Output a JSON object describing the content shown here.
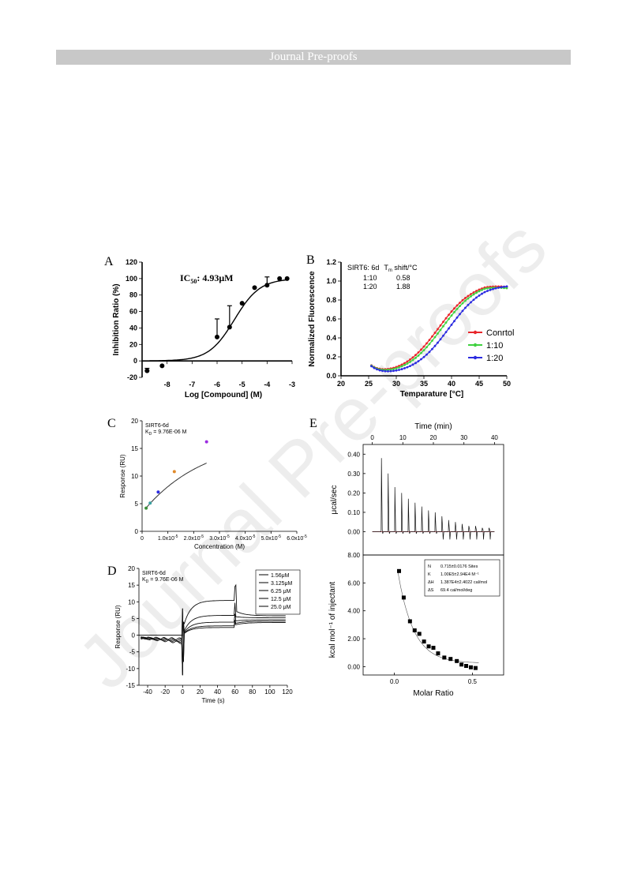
{
  "header": {
    "title": "Journal Pre-proofs"
  },
  "watermark": {
    "text": "Journal Pre-proofs"
  },
  "panels": {
    "A": {
      "label": "A"
    },
    "B": {
      "label": "B"
    },
    "C": {
      "label": "C"
    },
    "D": {
      "label": "D"
    },
    "E": {
      "label": "E"
    }
  },
  "chart_data": [
    {
      "id": "A",
      "type": "scatter",
      "title": "",
      "annotation": {
        "text": "IC",
        "sub": "50",
        "rest": ": 4.93μM"
      },
      "xlabel": "Log [Compound] (M)",
      "ylabel": "Inhibition Ratio (%)",
      "xlim": [
        -9,
        -3
      ],
      "ylim": [
        -20,
        120
      ],
      "xticks": [
        -9,
        -8,
        -7,
        -6,
        -5,
        -4,
        -3
      ],
      "xtick_labels": [
        "-9",
        "-8",
        "-7",
        "-6",
        "-5",
        "-4",
        "-3"
      ],
      "yticks": [
        -20,
        0,
        20,
        40,
        60,
        80,
        100,
        120
      ],
      "points": [
        {
          "x": -8.8,
          "y": -12,
          "err": 3
        },
        {
          "x": -8.2,
          "y": -6,
          "err": 0
        },
        {
          "x": -6.0,
          "y": 29,
          "err": 22
        },
        {
          "x": -5.5,
          "y": 41,
          "err": 26
        },
        {
          "x": -5.0,
          "y": 70,
          "err": 0
        },
        {
          "x": -4.5,
          "y": 89,
          "err": 0
        },
        {
          "x": -4.0,
          "y": 92,
          "err": 10
        },
        {
          "x": -3.5,
          "y": 100,
          "err": 0
        },
        {
          "x": -3.2,
          "y": 100,
          "err": 0
        }
      ],
      "fit": {
        "bottom": 0,
        "top": 100,
        "logIC50": -5.31,
        "hill": 0.85,
        "from": -8.7,
        "to": -3.2
      }
    },
    {
      "id": "B",
      "type": "line",
      "xlabel": "Temparature [°C]",
      "ylabel": "Normalized Fluorescence",
      "xlim": [
        20,
        50
      ],
      "ylim": [
        0.0,
        1.2
      ],
      "xticks": [
        20,
        25,
        30,
        35,
        40,
        45,
        50
      ],
      "yticks": [
        0.0,
        0.2,
        0.4,
        0.6,
        0.8,
        1.0,
        1.2
      ],
      "ytick_labels": [
        "0.0",
        "0.2",
        "0.4",
        "0.6",
        "0.8",
        "1.0",
        "1.2"
      ],
      "inset_table": {
        "header": [
          "SIRT6: 6d",
          "T",
          "m",
          " shift/°C"
        ],
        "rows": [
          [
            "1:10",
            "0.58"
          ],
          [
            "1:20",
            "1.88"
          ]
        ]
      },
      "series": [
        {
          "name": "Conrtol",
          "color": "#e8262b",
          "tm": 37.6,
          "k": 0.28,
          "droop": 0.04
        },
        {
          "name": "1:10",
          "color": "#3fd13f",
          "tm": 38.2,
          "k": 0.28,
          "droop": 0.05
        },
        {
          "name": "1:20",
          "color": "#2b2be0",
          "tm": 39.5,
          "k": 0.28,
          "droop": 0.02
        }
      ],
      "legend_position": "right"
    },
    {
      "id": "C",
      "type": "scatter",
      "annotation": [
        "SIRT6-6d",
        "K",
        "D",
        " = 9.76E-06 M"
      ],
      "xlabel": "Concentration (M)",
      "ylabel": "Response (RU)",
      "xlim": [
        0,
        6e-05
      ],
      "ylim": [
        0,
        20
      ],
      "xticks": [
        0,
        1e-05,
        2e-05,
        3e-05,
        4e-05,
        5e-05,
        6e-05
      ],
      "xtick_labels": [
        "0",
        "1.0x10",
        "2.0x10",
        "3.0x10",
        "4.0x10",
        "5.0x10",
        "6.0x10"
      ],
      "xtick_exp": "-5",
      "yticks": [
        0,
        5,
        10,
        15,
        20
      ],
      "points": [
        {
          "x": 1.56e-06,
          "y": 4.2,
          "color": "#3a8f3a"
        },
        {
          "x": 3.125e-06,
          "y": 5.1,
          "color": "#3aa0a0"
        },
        {
          "x": 6.25e-06,
          "y": 7.1,
          "color": "#2b2be0"
        },
        {
          "x": 1.25e-05,
          "y": 10.8,
          "color": "#e08a2b"
        },
        {
          "x": 2.5e-05,
          "y": 16.2,
          "color": "#9b2be0"
        }
      ],
      "fit": {
        "from": 1.5e-06,
        "to": 2.5e-05
      }
    },
    {
      "id": "D",
      "type": "line",
      "annotation": [
        "SIRT6-6d",
        "K",
        "D",
        " = 9.76E-06 M"
      ],
      "xlabel": "Time (s)",
      "ylabel": "Response (RU)",
      "xlim": [
        -50,
        120
      ],
      "ylim": [
        -15,
        20
      ],
      "xticks": [
        -40,
        -20,
        0,
        20,
        40,
        60,
        80,
        100,
        120
      ],
      "yticks": [
        -15,
        -10,
        -5,
        0,
        5,
        10,
        15,
        20
      ],
      "legend": [
        "1.56μM",
        "3.125μM",
        "6.25 μM",
        "12.5 μM",
        "25.0 μM"
      ],
      "series": [
        {
          "name": "1.56μM",
          "plateau": 4.2,
          "end": 3.8,
          "base": -2.5
        },
        {
          "name": "3.125μM",
          "plateau": 5.1,
          "end": 4.2,
          "base": -2.0
        },
        {
          "name": "6.25 μM",
          "plateau": 7.1,
          "end": 4.6,
          "base": -1.5
        },
        {
          "name": "12.5 μM",
          "plateau": 10.8,
          "end": 5.2,
          "base": -1.0
        },
        {
          "name": "25.0 μM",
          "plateau": 16.2,
          "end": 5.8,
          "base": -0.5
        }
      ]
    },
    {
      "id": "E-top",
      "type": "line",
      "xlabel": "Time (min)",
      "ylabel": "μcal/sec",
      "xlim": [
        -3,
        43
      ],
      "ylim": [
        -0.12,
        0.45
      ],
      "xticks": [
        0,
        10,
        20,
        30,
        40
      ],
      "yticks": [
        0.0,
        0.1,
        0.2,
        0.3,
        0.4
      ],
      "ytick_labels": [
        "0.00",
        "0.10",
        "0.20",
        "0.30",
        "0.40"
      ],
      "peaks": [
        {
          "t": 3.0,
          "h": 0.38
        },
        {
          "t": 5.2,
          "h": 0.3
        },
        {
          "t": 7.4,
          "h": 0.23
        },
        {
          "t": 9.6,
          "h": 0.2
        },
        {
          "t": 11.8,
          "h": 0.17
        },
        {
          "t": 14.0,
          "h": 0.15
        },
        {
          "t": 16.2,
          "h": 0.13
        },
        {
          "t": 18.4,
          "h": 0.11
        },
        {
          "t": 20.6,
          "h": 0.1
        },
        {
          "t": 22.8,
          "h": 0.08
        },
        {
          "t": 25.0,
          "h": 0.06
        },
        {
          "t": 27.2,
          "h": 0.05
        },
        {
          "t": 29.4,
          "h": 0.04
        },
        {
          "t": 31.6,
          "h": 0.03
        },
        {
          "t": 33.8,
          "h": 0.03
        },
        {
          "t": 36.0,
          "h": 0.02
        },
        {
          "t": 38.2,
          "h": 0.02
        }
      ]
    },
    {
      "id": "E-bottom",
      "type": "scatter",
      "xlabel": "Molar Ratio",
      "ylabel": "kcal mol⁻¹ of injectant",
      "xlim": [
        -0.2,
        0.7
      ],
      "ylim": [
        -0.6,
        8.0
      ],
      "xticks": [
        0.0,
        0.5
      ],
      "xtick_labels": [
        "0.0",
        "0.5"
      ],
      "yticks": [
        0,
        2,
        4,
        6,
        8
      ],
      "ytick_labels": [
        "0.00",
        "2.00",
        "4.00",
        "6.00",
        "8.00"
      ],
      "stats": [
        [
          "N",
          "0.715±0.0176 Sites"
        ],
        [
          "K",
          "1.00E5±2.94E4 M⁻¹"
        ],
        [
          "ΔH",
          "1.387E4±2.4022 cal/mol"
        ],
        [
          "ΔS",
          "69.4 cal/mol/deg"
        ]
      ],
      "points": [
        {
          "x": 0.03,
          "y": 6.85
        },
        {
          "x": 0.06,
          "y": 4.95
        },
        {
          "x": 0.1,
          "y": 3.25
        },
        {
          "x": 0.13,
          "y": 2.6
        },
        {
          "x": 0.16,
          "y": 2.35
        },
        {
          "x": 0.19,
          "y": 1.8
        },
        {
          "x": 0.22,
          "y": 1.45
        },
        {
          "x": 0.25,
          "y": 1.35
        },
        {
          "x": 0.28,
          "y": 0.95
        },
        {
          "x": 0.32,
          "y": 0.65
        },
        {
          "x": 0.36,
          "y": 0.55
        },
        {
          "x": 0.4,
          "y": 0.4
        },
        {
          "x": 0.43,
          "y": 0.15
        },
        {
          "x": 0.46,
          "y": 0.05
        },
        {
          "x": 0.49,
          "y": -0.05
        },
        {
          "x": 0.52,
          "y": -0.1
        }
      ]
    }
  ]
}
